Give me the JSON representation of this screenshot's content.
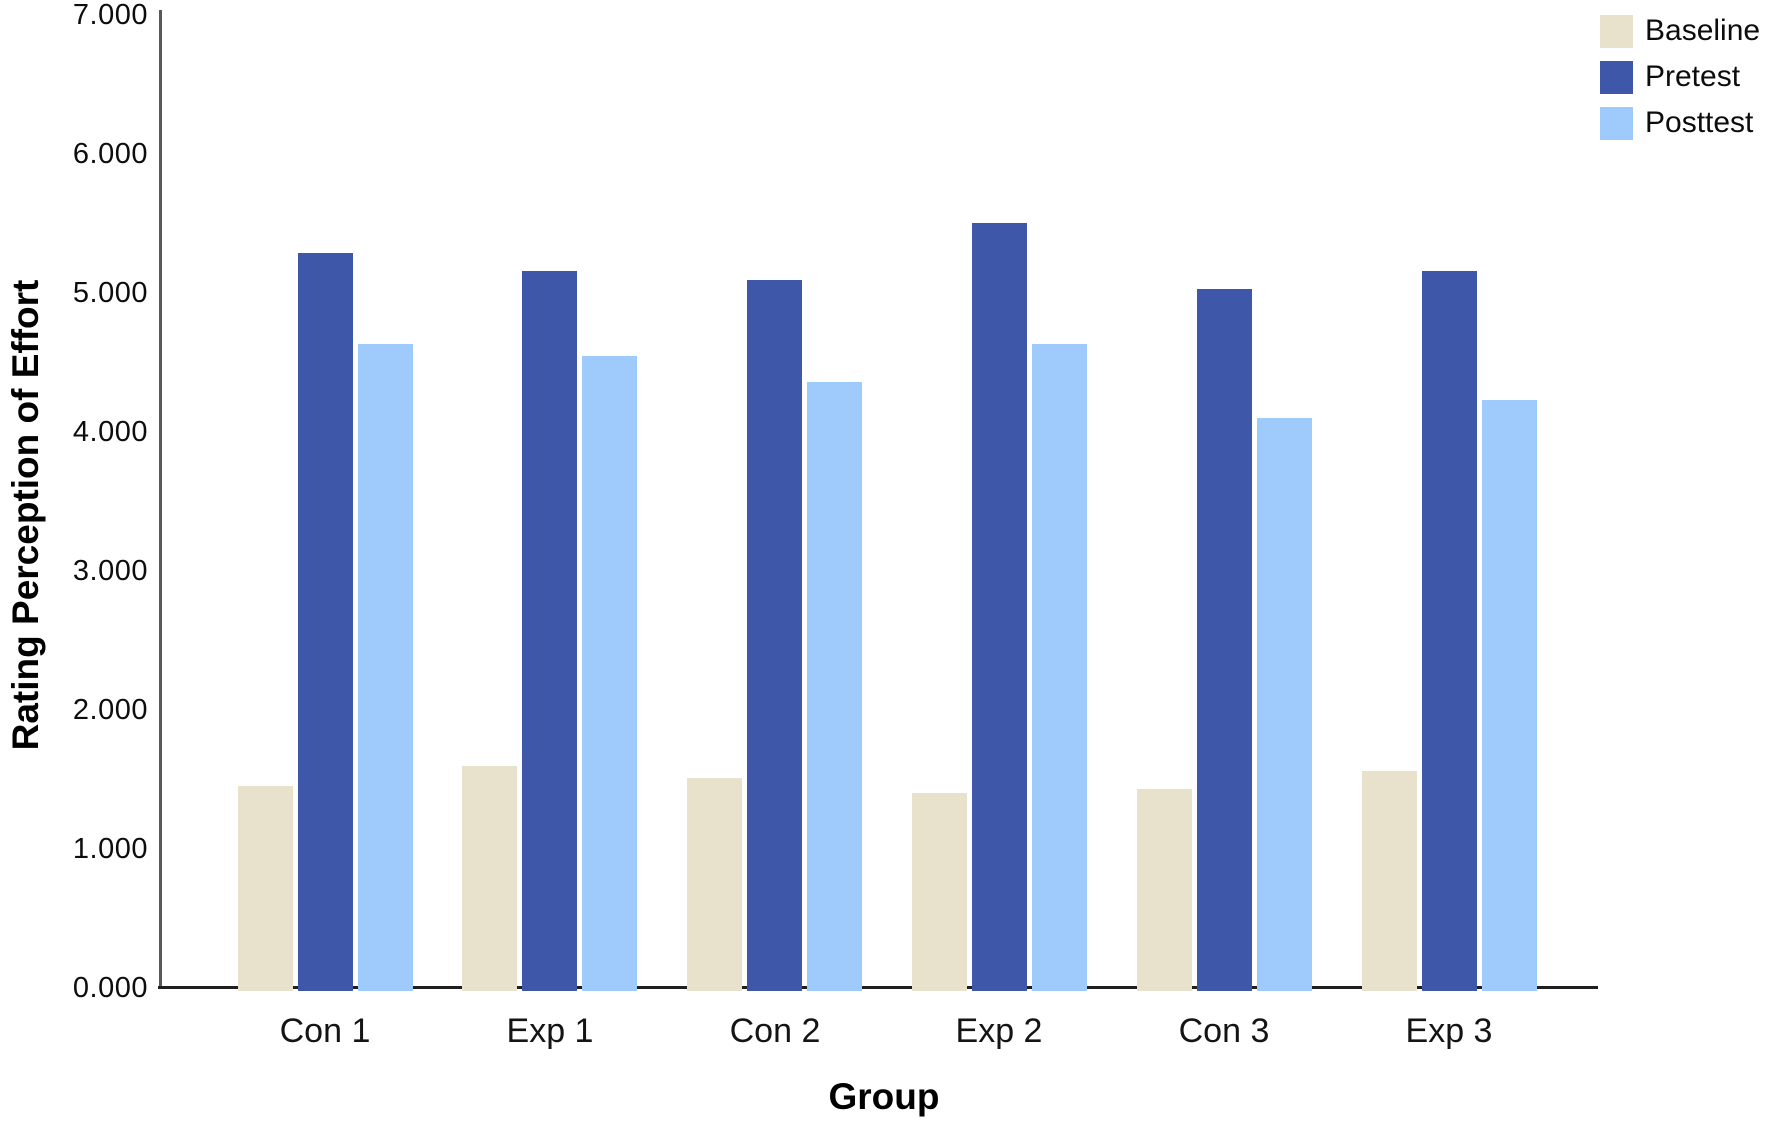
{
  "chart_data": {
    "type": "bar",
    "title": "",
    "xlabel": "Group",
    "ylabel": "Rating Perception of Effort",
    "ylim": [
      0,
      7
    ],
    "ytick_labels": [
      "0.000",
      "1.000",
      "2.000",
      "3.000",
      "4.000",
      "5.000",
      "6.000",
      "7.000"
    ],
    "categories": [
      "Con 1",
      "Exp 1",
      "Con 2",
      "Exp 2",
      "Con 3",
      "Exp 3"
    ],
    "series": [
      {
        "name": "Baseline",
        "color": "#e8e2cc",
        "values": [
          1.45,
          1.6,
          1.51,
          1.4,
          1.43,
          1.56
        ]
      },
      {
        "name": "Pretest",
        "color": "#3f57a8",
        "values": [
          5.29,
          5.16,
          5.09,
          5.5,
          5.03,
          5.16
        ]
      },
      {
        "name": "Posttest",
        "color": "#9ecbfb",
        "values": [
          4.63,
          4.55,
          4.36,
          4.63,
          4.1,
          4.23
        ]
      }
    ],
    "legend_position": "top-right",
    "grid": false,
    "axis_color": "#1f1f1f"
  }
}
